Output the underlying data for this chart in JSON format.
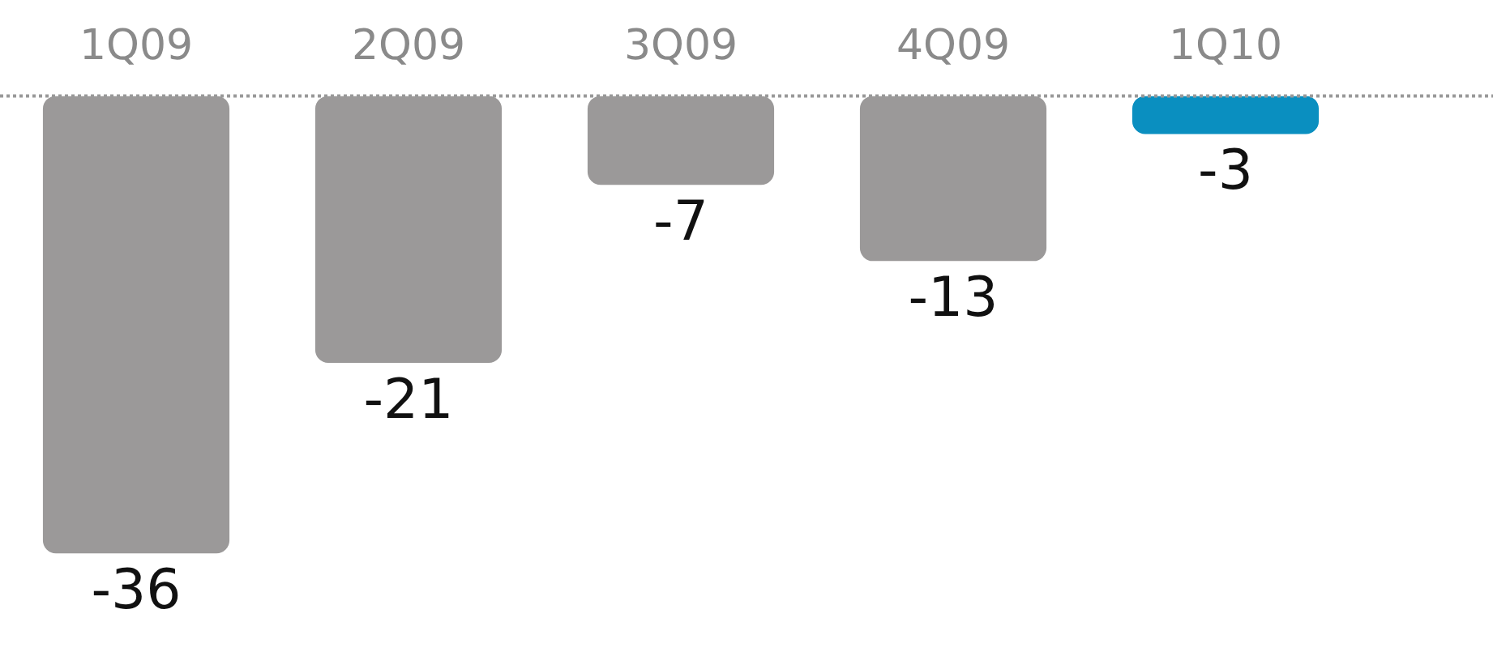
{
  "chart_data": {
    "type": "bar",
    "categories": [
      "1Q09",
      "2Q09",
      "3Q09",
      "4Q09",
      "1Q10"
    ],
    "values": [
      -36,
      -21,
      -7,
      -13,
      -3
    ],
    "colors": [
      "#9b9999",
      "#9b9999",
      "#9b9999",
      "#9b9999",
      "#0a8fc0"
    ],
    "tick_labels": "x",
    "data_labels": true,
    "grid": false,
    "legend": false
  }
}
